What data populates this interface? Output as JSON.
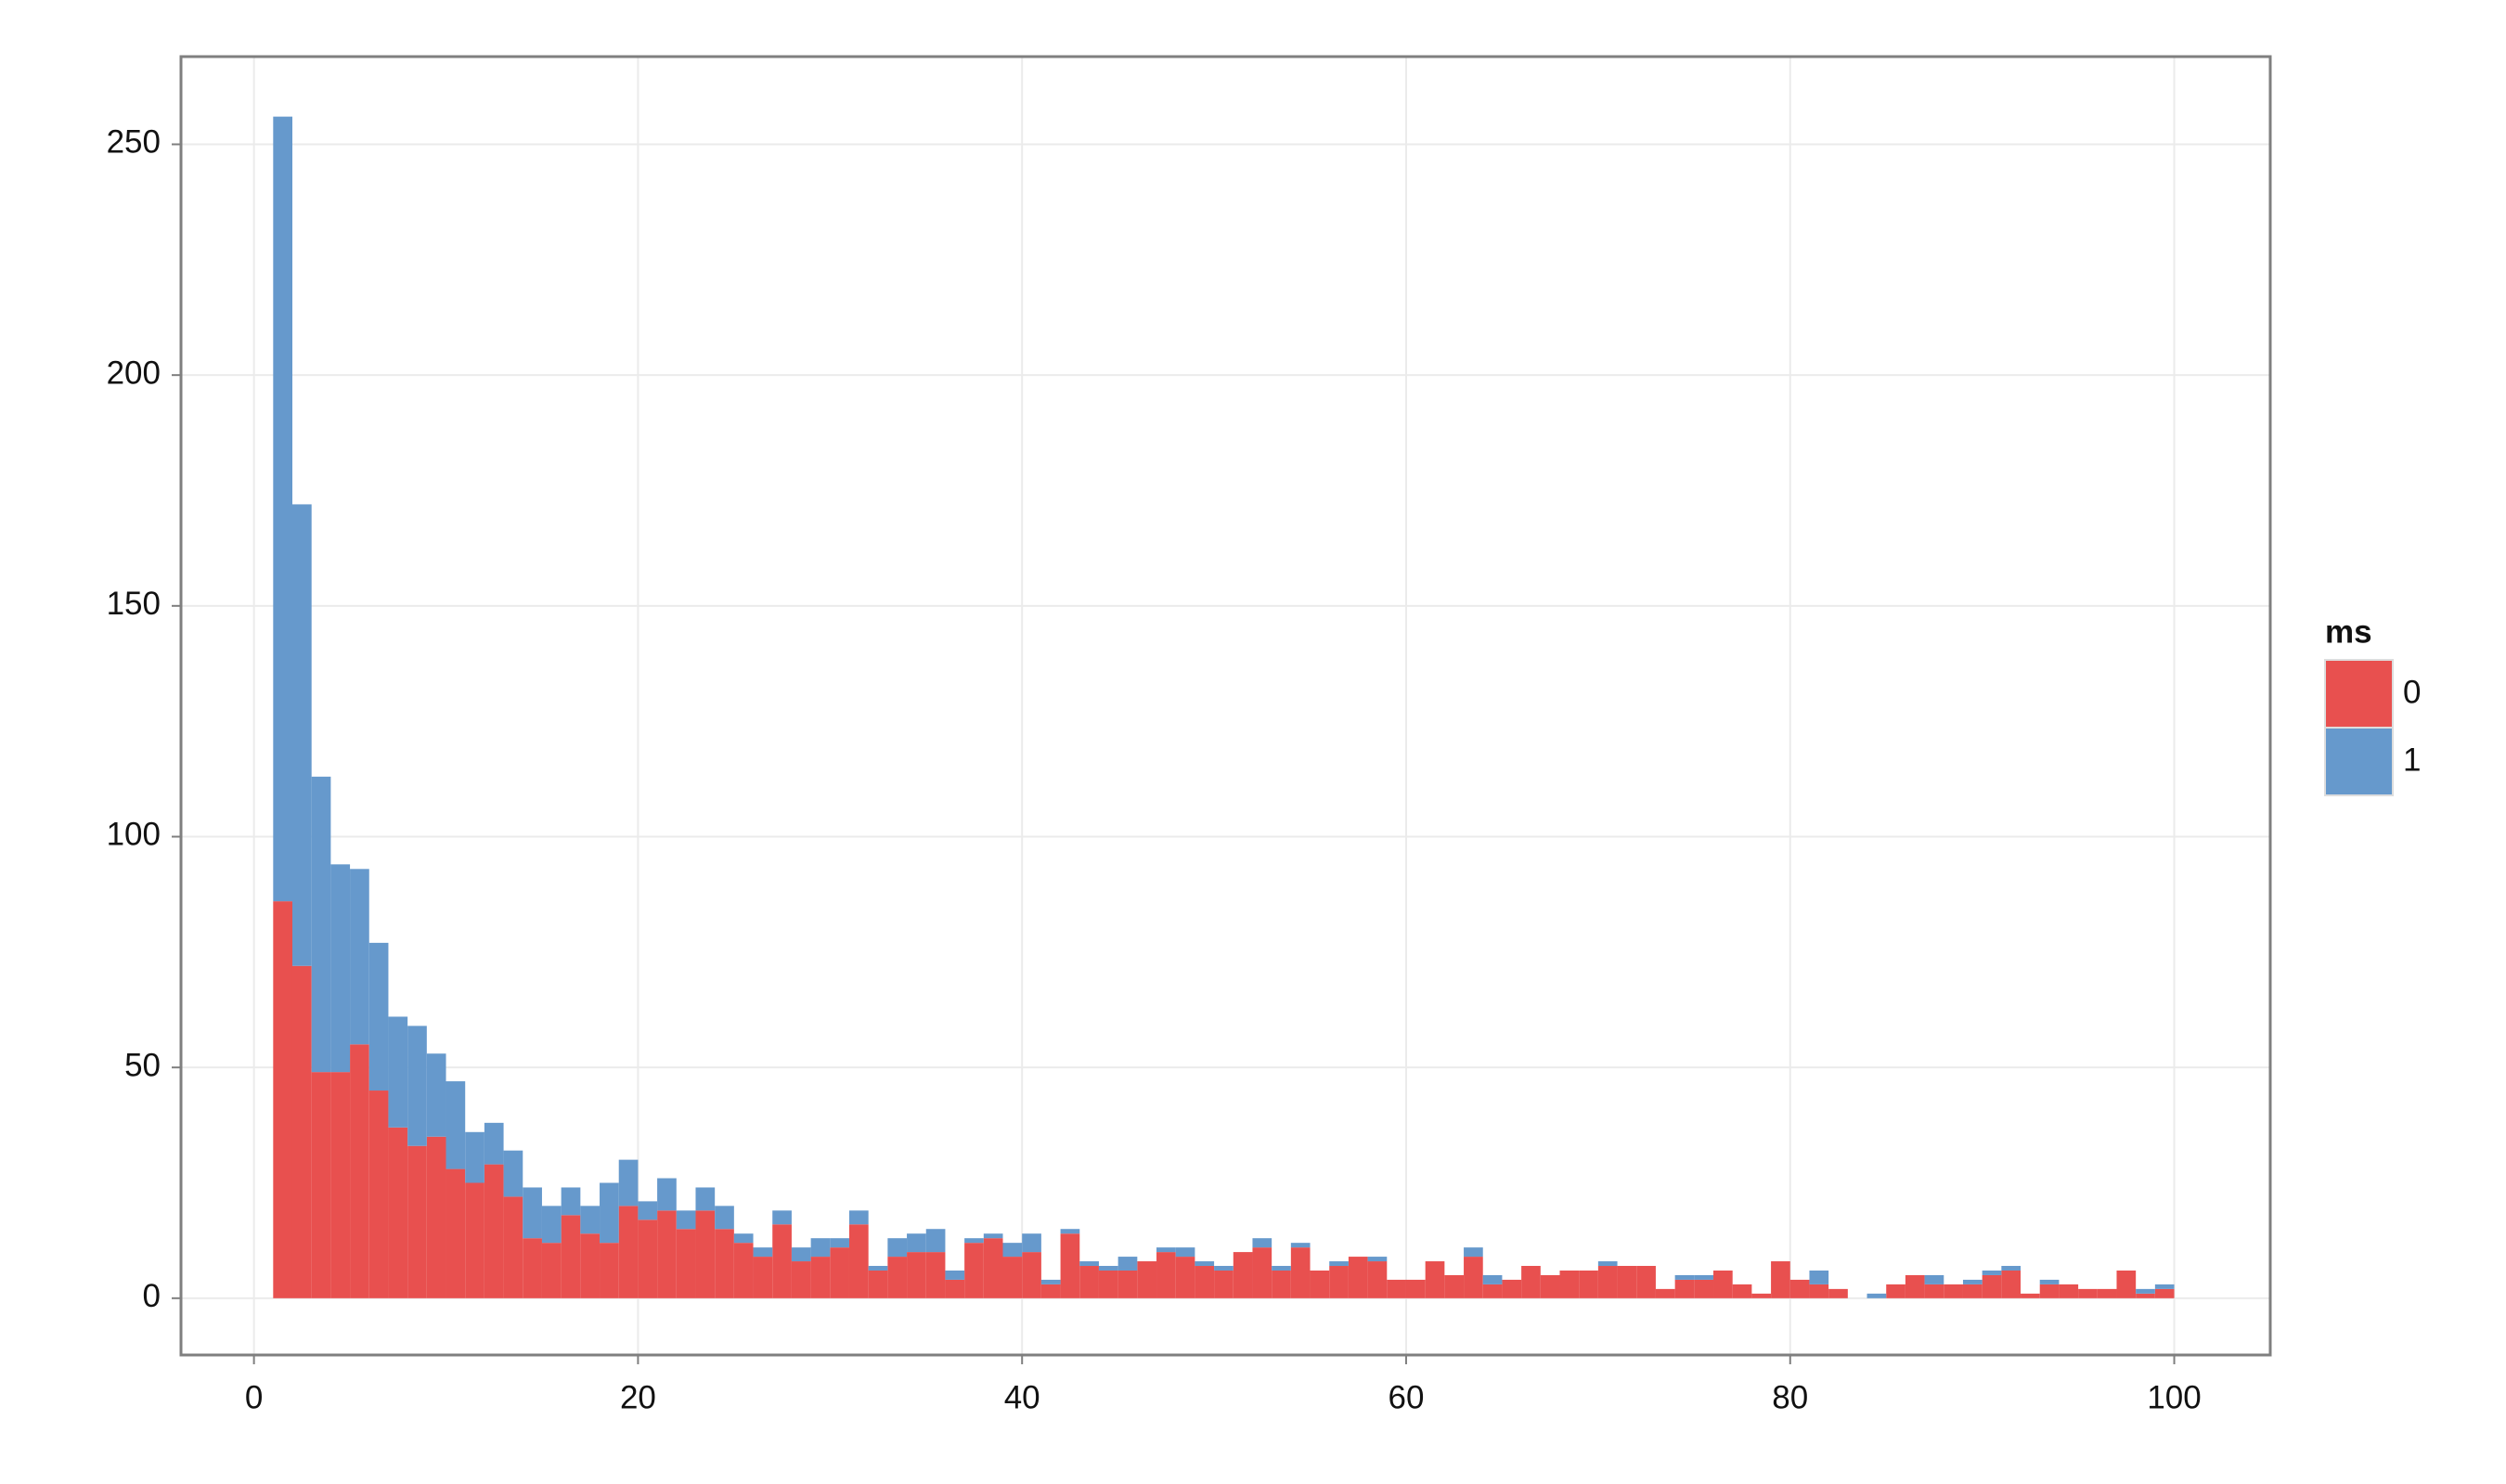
{
  "chart_data": {
    "type": "histogram",
    "bins": [
      1,
      2,
      3,
      4,
      5,
      6,
      7,
      8,
      9,
      10,
      11,
      12,
      13,
      14,
      15,
      16,
      17,
      18,
      19,
      20,
      21,
      22,
      23,
      24,
      25,
      26,
      27,
      28,
      29,
      30,
      31,
      32,
      33,
      34,
      35,
      36,
      37,
      38,
      39,
      40,
      41,
      42,
      43,
      44,
      45,
      46,
      47,
      48,
      49,
      50,
      51,
      52,
      53,
      54,
      55,
      56,
      57,
      58,
      59,
      60,
      61,
      62,
      63,
      64,
      65,
      66,
      67,
      68,
      69,
      70,
      71,
      72,
      73,
      74,
      75,
      76,
      77,
      78,
      79,
      80,
      81,
      82,
      83,
      84,
      85,
      86,
      87,
      88,
      89,
      90,
      91,
      92,
      93,
      94,
      95,
      96,
      97,
      98,
      99,
      100
    ],
    "legend_title": "ms",
    "series": [
      {
        "name": "0",
        "color": "#e8504f",
        "values": [
          86,
          72,
          49,
          49,
          55,
          45,
          37,
          33,
          35,
          28,
          25,
          29,
          22,
          13,
          12,
          18,
          14,
          12,
          20,
          17,
          19,
          15,
          19,
          15,
          12,
          9,
          16,
          8,
          9,
          11,
          16,
          6,
          9,
          10,
          10,
          4,
          12,
          13,
          9,
          10,
          3,
          14,
          7,
          6,
          6,
          8,
          10,
          9,
          7,
          6,
          10,
          11,
          6,
          11,
          6,
          7,
          9,
          8,
          4,
          4,
          8,
          5,
          9,
          3,
          4,
          7,
          5,
          6,
          6,
          7,
          7,
          7,
          2,
          4,
          4,
          6,
          3,
          1,
          8,
          4,
          3,
          2,
          0,
          0,
          3,
          5,
          3,
          3,
          3,
          5,
          6,
          1,
          3,
          3,
          2,
          2,
          6,
          1,
          2
        ]
      },
      {
        "name": "1",
        "color": "#6699cc",
        "values": [
          170,
          100,
          64,
          45,
          38,
          32,
          24,
          26,
          18,
          19,
          11,
          9,
          10,
          11,
          8,
          6,
          6,
          13,
          10,
          4,
          7,
          4,
          5,
          5,
          2,
          2,
          3,
          3,
          4,
          2,
          3,
          1,
          4,
          4,
          5,
          2,
          1,
          1,
          3,
          4,
          1,
          1,
          1,
          1,
          3,
          0,
          1,
          2,
          1,
          1,
          0,
          2,
          1,
          1,
          0,
          1,
          0,
          1,
          0,
          0,
          0,
          0,
          2,
          2,
          0,
          0,
          0,
          0,
          0,
          1,
          0,
          0,
          0,
          1,
          1,
          0,
          0,
          0,
          0,
          0,
          3,
          0,
          0,
          1,
          0,
          0,
          2,
          0,
          1,
          1,
          1,
          0,
          1,
          0,
          0,
          0,
          0,
          1,
          1
        ]
      }
    ],
    "stacked": true,
    "xlim": [
      -3.8,
      105
    ],
    "ylim": [
      -12.3,
      269
    ],
    "xticks": [
      0,
      20,
      40,
      60,
      80,
      100
    ],
    "yticks": [
      0,
      50,
      100,
      150,
      200,
      250
    ],
    "grid": true
  }
}
